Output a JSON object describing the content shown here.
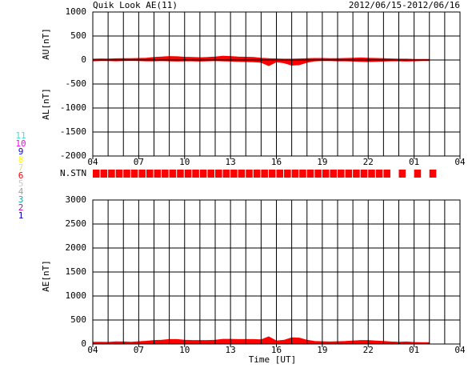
{
  "chart_data": [
    {
      "type": "area",
      "title": "Quik Look AE(11)",
      "subtitle": "2012/06/15-2012/06/16",
      "y_labels": [
        "AU[nT]",
        "AL[nT]"
      ],
      "x": [
        4,
        4.5,
        5,
        5.5,
        6,
        6.5,
        7,
        7.5,
        8,
        8.5,
        9,
        9.5,
        10,
        10.5,
        11,
        11.5,
        12,
        12.5,
        13,
        13.5,
        14,
        14.5,
        15,
        15.5,
        16,
        16.5,
        17,
        17.5,
        18,
        18.5,
        19,
        19.5,
        20,
        20.5,
        21,
        21.5,
        22,
        22.5,
        23,
        23.5,
        24,
        24.5,
        25,
        25.5,
        26
      ],
      "xlim": [
        4,
        28
      ],
      "xticks": [
        {
          "value": 4,
          "label": "04"
        },
        {
          "value": 7,
          "label": "07"
        },
        10,
        13,
        16,
        19,
        22,
        {
          "value": 25,
          "label": "01"
        },
        {
          "value": 28,
          "label": "04"
        }
      ],
      "xminorticks": [
        4,
        5,
        6,
        7,
        8,
        9,
        10,
        11,
        12,
        13,
        14,
        15,
        16,
        17,
        18,
        19,
        20,
        21,
        22,
        23,
        24,
        25,
        26,
        27,
        28
      ],
      "ylim": [
        -2000,
        1000
      ],
      "yticks": [
        1000,
        500,
        0,
        -500,
        -1000,
        -1500,
        -2000
      ],
      "series": [
        {
          "color": "#ff0000",
          "values": [
            20,
            25,
            22,
            28,
            30,
            30,
            35,
            40,
            55,
            65,
            75,
            70,
            60,
            55,
            50,
            55,
            65,
            80,
            75,
            65,
            60,
            55,
            40,
            30,
            25,
            20,
            20,
            25,
            30,
            35,
            35,
            30,
            30,
            35,
            40,
            45,
            40,
            35,
            30,
            25,
            20,
            20,
            15,
            15,
            15
          ]
        },
        {
          "color": "#ff0000",
          "values": [
            -20,
            -15,
            -15,
            -20,
            -15,
            -10,
            -15,
            -20,
            -20,
            -15,
            -20,
            -25,
            -20,
            -20,
            -25,
            -20,
            -15,
            -20,
            -25,
            -30,
            -35,
            -40,
            -50,
            -120,
            -40,
            -60,
            -110,
            -100,
            -50,
            -20,
            -15,
            -15,
            -20,
            -20,
            -25,
            -30,
            -35,
            -30,
            -25,
            -20,
            -20,
            -25,
            -20,
            -15,
            -15
          ]
        }
      ]
    },
    {
      "type": "strip",
      "ylabel": "N.STN",
      "x": [
        4,
        4.5,
        5,
        5.5,
        6,
        6.5,
        7,
        7.5,
        8,
        8.5,
        9,
        9.5,
        10,
        10.5,
        11,
        11.5,
        12,
        12.5,
        13,
        13.5,
        14,
        14.5,
        15,
        15.5,
        16,
        16.5,
        17,
        17.5,
        18,
        18.5,
        19,
        19.5,
        20,
        20.5,
        21,
        21.5,
        22,
        22.5,
        23,
        23.5,
        24,
        24.5,
        25,
        25.5,
        26
      ],
      "xlim": [
        4,
        28
      ],
      "values": [
        6,
        6,
        6,
        6,
        6,
        6,
        6,
        6,
        6,
        6,
        6,
        6,
        6,
        6,
        6,
        6,
        6,
        6,
        6,
        6,
        6,
        6,
        6,
        6,
        6,
        6,
        6,
        6,
        6,
        6,
        6,
        6,
        6,
        6,
        6,
        6,
        6,
        6,
        6,
        null,
        6,
        null,
        6,
        null,
        6
      ],
      "legend": {
        "labels": [
          11,
          10,
          9,
          8,
          7,
          6,
          5,
          4,
          3,
          2,
          1
        ],
        "colors": [
          "#40e0e0",
          "#ff00ff",
          "#0000ff",
          "#ffff00",
          "#e0e080",
          "#ff0000",
          "#c8c8c8",
          "#a0a0a0",
          "#00b0b0",
          "#c000c0",
          "#0000c0"
        ]
      }
    },
    {
      "type": "area",
      "y_labels": [
        "AE[nT]"
      ],
      "xlabel": "Time [UT]",
      "x": [
        4,
        4.5,
        5,
        5.5,
        6,
        6.5,
        7,
        7.5,
        8,
        8.5,
        9,
        9.5,
        10,
        10.5,
        11,
        11.5,
        12,
        12.5,
        13,
        13.5,
        14,
        14.5,
        15,
        15.5,
        16,
        16.5,
        17,
        17.5,
        18,
        18.5,
        19,
        19.5,
        20,
        20.5,
        21,
        21.5,
        22,
        22.5,
        23,
        23.5,
        24,
        24.5,
        25,
        25.5,
        26
      ],
      "xlim": [
        4,
        28
      ],
      "xticks": [
        {
          "value": 4,
          "label": "04"
        },
        {
          "value": 7,
          "label": "07"
        },
        10,
        13,
        16,
        19,
        22,
        {
          "value": 25,
          "label": "01"
        },
        {
          "value": 28,
          "label": "04"
        }
      ],
      "xminorticks": [
        4,
        5,
        6,
        7,
        8,
        9,
        10,
        11,
        12,
        13,
        14,
        15,
        16,
        17,
        18,
        19,
        20,
        21,
        22,
        23,
        24,
        25,
        26,
        27,
        28
      ],
      "ylim": [
        0,
        3000
      ],
      "yticks": [
        0,
        500,
        1000,
        1500,
        2000,
        2500,
        3000
      ],
      "series": [
        {
          "color": "#ff0000",
          "values": [
            40,
            40,
            37,
            48,
            45,
            40,
            50,
            60,
            75,
            80,
            95,
            95,
            80,
            75,
            75,
            75,
            80,
            100,
            100,
            95,
            95,
            95,
            90,
            150,
            65,
            80,
            130,
            125,
            80,
            55,
            50,
            45,
            50,
            55,
            65,
            75,
            75,
            65,
            55,
            45,
            40,
            45,
            35,
            30,
            30
          ]
        }
      ]
    }
  ]
}
